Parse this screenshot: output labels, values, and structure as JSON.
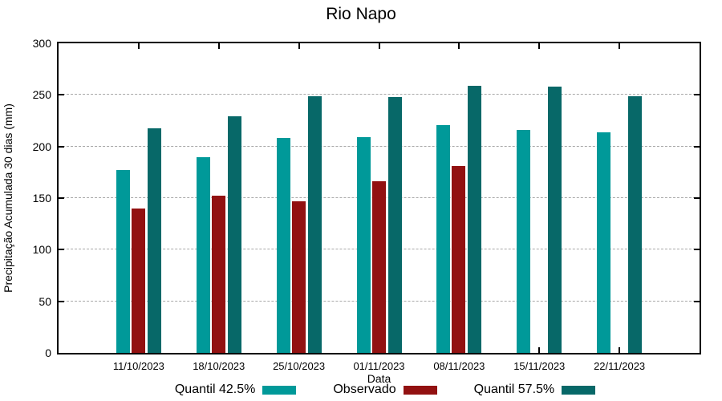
{
  "chart_data": {
    "type": "bar",
    "title": "Rio Napo",
    "xlabel": "Data",
    "ylabel": "Precipitação Acumulada 30 dias (mm)",
    "ylim": [
      0,
      300
    ],
    "yticks": [
      0,
      50,
      100,
      150,
      200,
      250,
      300
    ],
    "grid": "horizontal-dashed",
    "legend_position": "bottom",
    "categories": [
      "11/10/2023",
      "18/10/2023",
      "25/10/2023",
      "01/11/2023",
      "08/11/2023",
      "15/11/2023",
      "22/11/2023"
    ],
    "series": [
      {
        "name": "Quantil 42.5%",
        "color": "#009999",
        "values": [
          177,
          190,
          208,
          209,
          221,
          216,
          214
        ]
      },
      {
        "name": "Observado",
        "color": "#921111",
        "values": [
          140,
          152,
          147,
          166,
          181,
          null,
          null
        ]
      },
      {
        "name": "Quantil 57.5%",
        "color": "#076868",
        "values": [
          218,
          229,
          249,
          248,
          259,
          258,
          249
        ]
      }
    ]
  },
  "colors": {
    "background": "#ffffff",
    "axis": "#000000",
    "gridline": "#a8a8a8",
    "quantil_425": "#009999",
    "observado": "#921111",
    "quantil_575": "#076868"
  }
}
